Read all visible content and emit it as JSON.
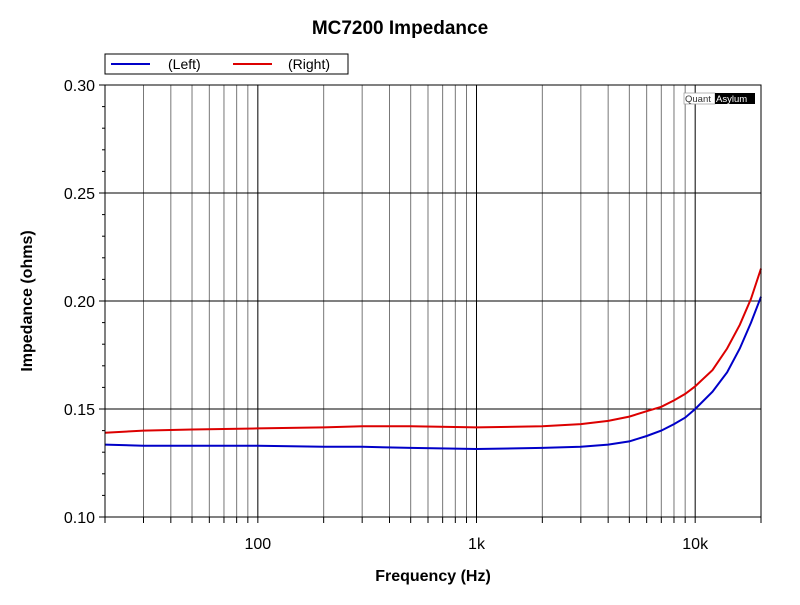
{
  "chart_data": {
    "type": "line",
    "title": "MC7200 Impedance",
    "xlabel": "Frequency (Hz)",
    "ylabel": "Impedance (ohms)",
    "xscale": "log",
    "xlim": [
      20,
      20000
    ],
    "ylim": [
      0.1,
      0.3
    ],
    "x_ticks": [
      {
        "v": 100,
        "label": "100"
      },
      {
        "v": 1000,
        "label": "1k"
      },
      {
        "v": 10000,
        "label": "10k"
      }
    ],
    "y_ticks": [
      {
        "v": 0.1,
        "label": "0.10"
      },
      {
        "v": 0.15,
        "label": "0.15"
      },
      {
        "v": 0.2,
        "label": "0.20"
      },
      {
        "v": 0.25,
        "label": "0.25"
      },
      {
        "v": 0.3,
        "label": "0.30"
      }
    ],
    "grid": true,
    "legend_position": "top-left above plot",
    "watermark": [
      "Quant",
      "Asylum"
    ],
    "x": [
      20,
      30,
      50,
      100,
      200,
      300,
      500,
      1000,
      2000,
      3000,
      4000,
      5000,
      6000,
      7000,
      8000,
      9000,
      10000,
      12000,
      14000,
      16000,
      18000,
      20000
    ],
    "series": [
      {
        "name": "(Left)",
        "color": "#0000c8",
        "values": [
          0.1335,
          0.133,
          0.133,
          0.133,
          0.1325,
          0.1325,
          0.132,
          0.1315,
          0.132,
          0.1325,
          0.1335,
          0.135,
          0.1375,
          0.14,
          0.143,
          0.146,
          0.15,
          0.158,
          0.167,
          0.178,
          0.19,
          0.202
        ]
      },
      {
        "name": "(Right)",
        "color": "#dc0000",
        "values": [
          0.139,
          0.14,
          0.1405,
          0.141,
          0.1415,
          0.142,
          0.142,
          0.1415,
          0.142,
          0.143,
          0.1445,
          0.1465,
          0.149,
          0.151,
          0.154,
          0.157,
          0.1605,
          0.168,
          0.178,
          0.189,
          0.201,
          0.215
        ]
      }
    ]
  }
}
